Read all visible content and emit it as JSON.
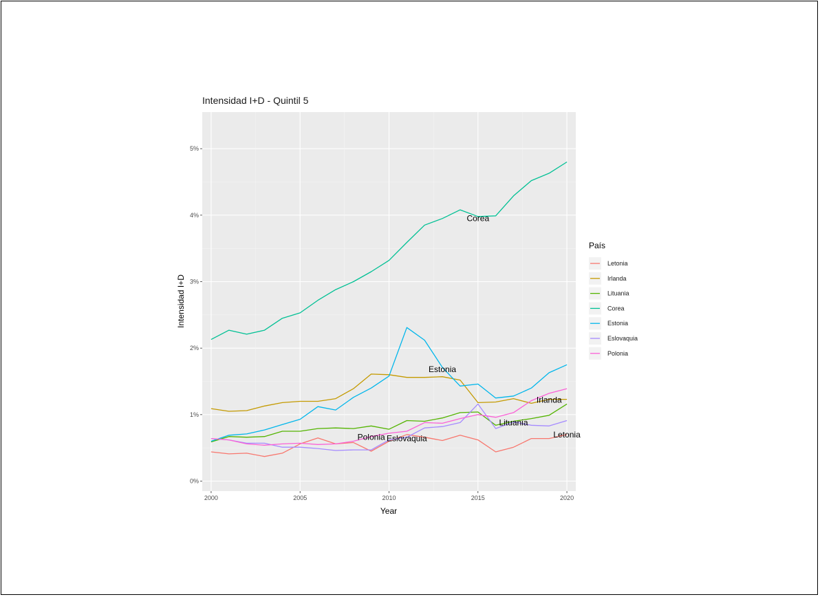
{
  "chart_data": {
    "type": "line",
    "title": "Intensidad I+D - Quintil 5",
    "xlabel": "Year",
    "ylabel": "Intensidad I+D",
    "xlim": [
      1999.5,
      2020.5
    ],
    "ylim": [
      -0.15,
      5.55
    ],
    "x_ticks": [
      2000,
      2005,
      2010,
      2015,
      2020
    ],
    "x_tick_labels": [
      "2000",
      "2005",
      "2010",
      "2015",
      "2020"
    ],
    "y_ticks": [
      0,
      1,
      2,
      3,
      4,
      5
    ],
    "y_tick_labels": [
      "0%",
      "1%",
      "2%",
      "3%",
      "4%",
      "5%"
    ],
    "legend": {
      "title": "País",
      "position": "right"
    },
    "grid": true,
    "x": [
      2000,
      2001,
      2002,
      2003,
      2004,
      2005,
      2006,
      2007,
      2008,
      2009,
      2010,
      2011,
      2012,
      2013,
      2014,
      2015,
      2016,
      2017,
      2018,
      2019,
      2020
    ],
    "series": [
      {
        "name": "Letonia",
        "color": "#F8766D",
        "values": [
          0.44,
          0.41,
          0.42,
          0.37,
          0.42,
          0.56,
          0.65,
          0.56,
          0.58,
          0.45,
          0.6,
          0.7,
          0.66,
          0.61,
          0.69,
          0.62,
          0.44,
          0.51,
          0.64,
          0.64,
          0.7
        ]
      },
      {
        "name": "Irlanda",
        "color": "#C49A00",
        "values": [
          1.09,
          1.05,
          1.06,
          1.13,
          1.18,
          1.2,
          1.2,
          1.24,
          1.39,
          1.61,
          1.6,
          1.56,
          1.56,
          1.57,
          1.52,
          1.18,
          1.19,
          1.24,
          1.17,
          1.23,
          1.23
        ]
      },
      {
        "name": "Lituania",
        "color": "#53B400",
        "values": [
          0.59,
          0.67,
          0.66,
          0.67,
          0.75,
          0.75,
          0.79,
          0.8,
          0.79,
          0.83,
          0.78,
          0.91,
          0.9,
          0.95,
          1.03,
          1.04,
          0.84,
          0.9,
          0.94,
          0.99,
          1.16
        ]
      },
      {
        "name": "Corea",
        "color": "#00C094",
        "values": [
          2.13,
          2.27,
          2.21,
          2.27,
          2.45,
          2.53,
          2.72,
          2.88,
          3.0,
          3.15,
          3.32,
          3.59,
          3.85,
          3.95,
          4.08,
          3.98,
          3.99,
          4.29,
          4.52,
          4.63,
          4.8
        ]
      },
      {
        "name": "Estonia",
        "color": "#00B6EB",
        "values": [
          0.6,
          0.69,
          0.71,
          0.77,
          0.85,
          0.93,
          1.12,
          1.07,
          1.26,
          1.4,
          1.58,
          2.31,
          2.12,
          1.71,
          1.43,
          1.46,
          1.25,
          1.28,
          1.4,
          1.63,
          1.75
        ]
      },
      {
        "name": "Eslovaquia",
        "color": "#A58AFF",
        "values": [
          0.64,
          0.62,
          0.57,
          0.57,
          0.51,
          0.51,
          0.49,
          0.46,
          0.47,
          0.47,
          0.62,
          0.66,
          0.8,
          0.82,
          0.88,
          1.16,
          0.79,
          0.89,
          0.84,
          0.83,
          0.91
        ]
      },
      {
        "name": "Polonia",
        "color": "#FB61D7",
        "values": [
          0.64,
          0.62,
          0.56,
          0.54,
          0.56,
          0.57,
          0.55,
          0.56,
          0.6,
          0.67,
          0.72,
          0.75,
          0.88,
          0.87,
          0.94,
          1.0,
          0.96,
          1.03,
          1.21,
          1.32,
          1.39
        ]
      }
    ],
    "annotations": [
      {
        "text": "Corea",
        "x": 2015,
        "y": 3.95
      },
      {
        "text": "Estonia",
        "x": 2013,
        "y": 1.68
      },
      {
        "text": "Irlanda",
        "x": 2019,
        "y": 1.22
      },
      {
        "text": "Lituania",
        "x": 2017,
        "y": 0.88
      },
      {
        "text": "Letonia",
        "x": 2020,
        "y": 0.7
      },
      {
        "text": "Polonia",
        "x": 2009,
        "y": 0.66
      },
      {
        "text": "Eslovaquia",
        "x": 2011,
        "y": 0.64
      }
    ]
  }
}
